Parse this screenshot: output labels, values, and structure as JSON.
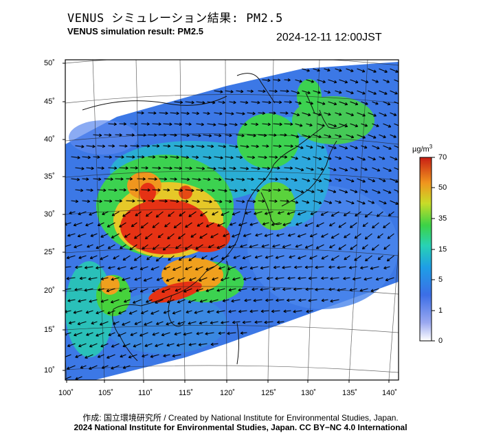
{
  "header": {
    "title_jp": "VENUS シミュレーション結果: PM2.5",
    "title_en": "VENUS simulation result: PM2.5",
    "timestamp": "2024-12-11 12:00JST"
  },
  "map": {
    "lat_labels": [
      "50˚",
      "45˚",
      "40˚",
      "35˚",
      "30˚",
      "25˚",
      "20˚",
      "15˚",
      "10˚"
    ],
    "lon_labels": [
      "100˚",
      "105˚",
      "110˚",
      "115˚",
      "120˚",
      "125˚",
      "130˚",
      "135˚",
      "140˚"
    ],
    "variable": "PM2.5 concentration with wind vectors"
  },
  "colorbar": {
    "unit": "µg/m",
    "unit_sup": "3",
    "ticks": [
      "70",
      "50",
      "35",
      "15",
      "5",
      "1",
      "0"
    ],
    "colors": [
      "#ffffff",
      "#5a78e6",
      "#1e8ce6",
      "#28d2c8",
      "#3cd250",
      "#c8dc28",
      "#f0a01e",
      "#e63214",
      "#b41e14"
    ]
  },
  "footer": {
    "credit": "作成: 国立環境研究所 / Created by National Institute for Environmental Studies, Japan.",
    "copyright": "2024 National Institute for Environmental Studies, Japan. CC BY−NC 4.0 International"
  }
}
